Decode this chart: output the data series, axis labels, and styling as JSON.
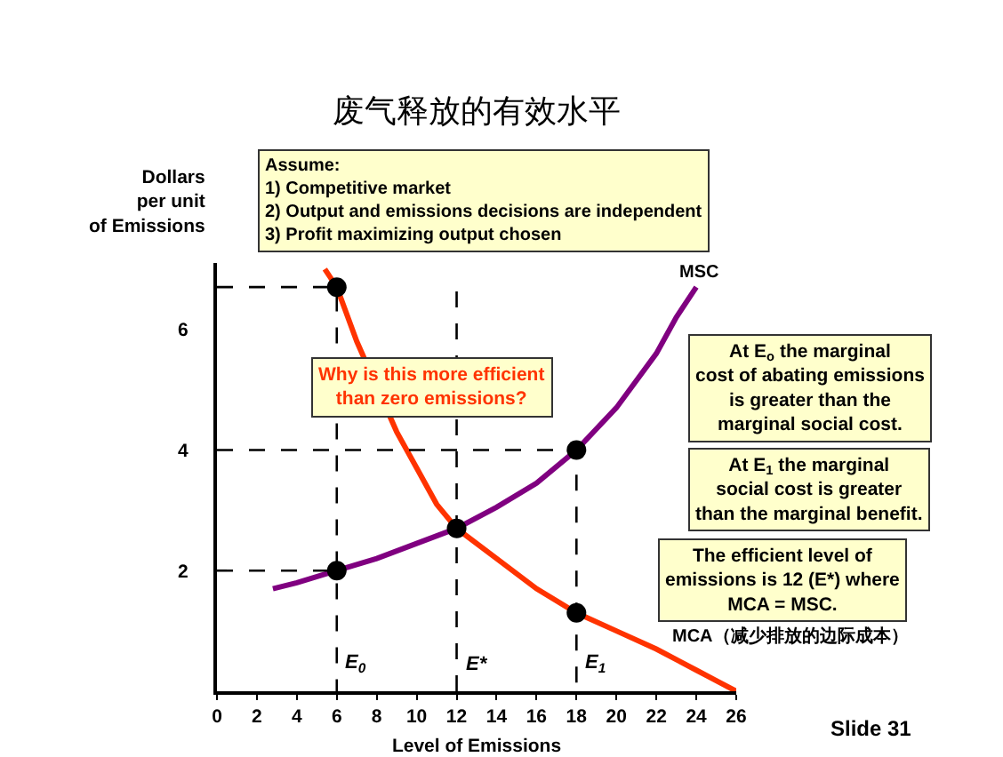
{
  "chart_data": {
    "type": "line",
    "title": "废气释放的有效水平",
    "xlabel": "Level of Emissions",
    "ylabel": "Dollars\nper unit\nof Emissions",
    "xlim": [
      0,
      26
    ],
    "xticks": [
      0,
      2,
      4,
      6,
      8,
      10,
      12,
      14,
      16,
      18,
      20,
      22,
      24,
      26
    ],
    "ylim": [
      0,
      7.1
    ],
    "yticks": [
      2,
      4,
      6
    ],
    "grid": false,
    "series": [
      {
        "name": "MSC",
        "type": "line",
        "color": "#800080",
        "line_style": "solid",
        "marker": "none",
        "x": [
          2.8,
          4,
          6,
          8,
          10,
          12,
          14,
          16,
          18,
          20,
          22,
          23,
          24
        ],
        "values": [
          1.7,
          1.8,
          2.0,
          2.2,
          2.45,
          2.7,
          3.05,
          3.45,
          4.0,
          4.7,
          5.6,
          6.2,
          6.7
        ]
      },
      {
        "name": "MCA（减少排放的边际成本）",
        "type": "line",
        "color": "#ff3300",
        "line_style": "solid",
        "marker": "none",
        "x": [
          5.4,
          6,
          7,
          9,
          10,
          11,
          12,
          14,
          16,
          18,
          20,
          22,
          24,
          26
        ],
        "values": [
          7.0,
          6.7,
          5.8,
          4.3,
          3.7,
          3.1,
          2.7,
          2.2,
          1.7,
          1.3,
          1.0,
          0.7,
          0.35,
          0
        ]
      },
      {
        "type": "line",
        "color": "#000000",
        "line_style": "dashed",
        "marker": "none",
        "x": [
          0,
          6,
          6
        ],
        "values": [
          6.7,
          6.7,
          0
        ]
      },
      {
        "type": "line",
        "color": "#000000",
        "line_style": "dashed",
        "marker": "none",
        "x": [
          0,
          6
        ],
        "values": [
          2,
          2
        ]
      },
      {
        "type": "line",
        "color": "#000000",
        "line_style": "dashed",
        "marker": "none",
        "x": [
          12,
          12
        ],
        "values": [
          0,
          6.7
        ]
      },
      {
        "type": "line",
        "color": "#000000",
        "line_style": "dashed",
        "marker": "none",
        "x": [
          0,
          18,
          18
        ],
        "values": [
          4,
          4,
          0
        ]
      },
      {
        "type": "scatter",
        "color": "#000000",
        "marker": "circle",
        "x": [
          6,
          6,
          12,
          18,
          18
        ],
        "values": [
          6.7,
          2,
          2.7,
          4,
          1.3
        ]
      }
    ],
    "annotations": [
      "Assume:\n1) Competitive market\n2) Output and emissions decisions are independent\n3) Profit maximizing output chosen",
      "Why is this more efficient\nthan zero emissions?",
      "At E$_{o}$ the marginal\ncost of abating emissions\nis greater than the\nmarginal social cost.",
      "At E$_{1}$ the marginal\nsocial cost is greater\nthan the marginal benefit.",
      "The efficient level of\nemissions is 12 (E*) where\nMCA = MSC.",
      "Slide 31",
      {
        "text": "E$_{0}$",
        "x": 6,
        "y": 0.45
      },
      {
        "text": "E*",
        "x": 12,
        "y": 0.45
      },
      {
        "text": "E$_{1}$",
        "x": 18,
        "y": 0.45
      }
    ]
  }
}
